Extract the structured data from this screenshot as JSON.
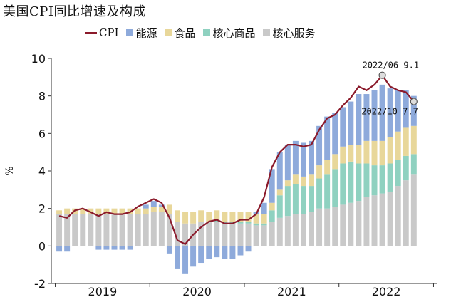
{
  "chart_data": {
    "type": "bar",
    "title": "美国CPI同比增速及构成",
    "ylabel": "%",
    "ylim": [
      -2,
      10
    ],
    "yticks": [
      -2,
      0,
      2,
      4,
      6,
      8,
      10
    ],
    "year_labels": [
      "2019",
      "2020",
      "2021",
      "2022"
    ],
    "colors": {
      "CPI": "#8b1a2b",
      "能源": "#8eaadb",
      "食品": "#e8d79a",
      "核心商品": "#8fd1c0",
      "核心服务": "#c9c9c9"
    },
    "legend": [
      {
        "key": "CPI",
        "label": "CPI",
        "kind": "line"
      },
      {
        "key": "能源",
        "label": "能源",
        "kind": "box"
      },
      {
        "key": "食品",
        "label": "食品",
        "kind": "box"
      },
      {
        "key": "核心商品",
        "label": "核心商品",
        "kind": "box"
      },
      {
        "key": "核心服务",
        "label": "核心服务",
        "kind": "box"
      }
    ],
    "x": [
      "2019-01",
      "2019-02",
      "2019-03",
      "2019-04",
      "2019-05",
      "2019-06",
      "2019-07",
      "2019-08",
      "2019-09",
      "2019-10",
      "2019-11",
      "2019-12",
      "2020-01",
      "2020-02",
      "2020-03",
      "2020-04",
      "2020-05",
      "2020-06",
      "2020-07",
      "2020-08",
      "2020-09",
      "2020-10",
      "2020-11",
      "2020-12",
      "2021-01",
      "2021-02",
      "2021-03",
      "2021-04",
      "2021-05",
      "2021-06",
      "2021-07",
      "2021-08",
      "2021-09",
      "2021-10",
      "2021-11",
      "2021-12",
      "2022-01",
      "2022-02",
      "2022-03",
      "2022-04",
      "2022-05",
      "2022-06",
      "2022-07",
      "2022-08",
      "2022-09",
      "2022-10"
    ],
    "series": [
      {
        "name": "核心服务",
        "values": [
          1.7,
          1.7,
          1.7,
          1.7,
          1.7,
          1.7,
          1.7,
          1.7,
          1.7,
          1.7,
          1.7,
          1.7,
          1.8,
          1.8,
          1.7,
          1.3,
          1.2,
          1.2,
          1.3,
          1.3,
          1.3,
          1.2,
          1.2,
          1.2,
          1.2,
          1.1,
          1.1,
          1.3,
          1.5,
          1.6,
          1.7,
          1.7,
          1.8,
          2.0,
          2.0,
          2.1,
          2.2,
          2.3,
          2.4,
          2.6,
          2.7,
          2.8,
          2.9,
          3.2,
          3.5,
          3.8
        ]
      },
      {
        "name": "核心商品",
        "values": [
          0.0,
          0.0,
          0.0,
          0.0,
          0.0,
          0.0,
          0.0,
          0.0,
          0.0,
          0.0,
          0.0,
          0.0,
          0.0,
          0.0,
          0.0,
          0.0,
          0.0,
          0.0,
          0.0,
          0.0,
          0.1,
          0.1,
          0.1,
          0.1,
          0.1,
          0.1,
          0.1,
          0.6,
          1.2,
          1.6,
          1.6,
          1.5,
          1.4,
          1.6,
          1.8,
          2.0,
          2.2,
          2.2,
          2.0,
          1.8,
          1.6,
          1.5,
          1.5,
          1.4,
          1.3,
          1.1
        ]
      },
      {
        "name": "食品",
        "values": [
          0.2,
          0.3,
          0.3,
          0.3,
          0.3,
          0.3,
          0.3,
          0.3,
          0.3,
          0.3,
          0.3,
          0.3,
          0.3,
          0.3,
          0.5,
          0.6,
          0.6,
          0.6,
          0.6,
          0.5,
          0.5,
          0.5,
          0.5,
          0.5,
          0.5,
          0.5,
          0.5,
          0.4,
          0.3,
          0.3,
          0.5,
          0.5,
          0.6,
          0.7,
          0.8,
          0.8,
          0.9,
          0.9,
          1.0,
          1.2,
          1.3,
          1.3,
          1.4,
          1.5,
          1.5,
          1.5
        ]
      },
      {
        "name": "能源",
        "values": [
          -0.3,
          -0.3,
          0.0,
          0.0,
          0.0,
          -0.2,
          -0.2,
          -0.2,
          -0.2,
          -0.2,
          0.0,
          0.2,
          0.3,
          0.1,
          -0.4,
          -1.2,
          -1.5,
          -1.1,
          -0.9,
          -0.7,
          -0.6,
          -0.7,
          -0.7,
          -0.5,
          -0.3,
          0.1,
          0.6,
          1.8,
          2.0,
          1.9,
          1.8,
          1.8,
          1.8,
          2.1,
          2.3,
          2.2,
          2.1,
          2.3,
          2.7,
          2.5,
          2.7,
          3.0,
          2.6,
          2.2,
          2.0,
          1.6
        ]
      },
      {
        "name": "CPI",
        "values": [
          1.6,
          1.5,
          1.9,
          2.0,
          1.8,
          1.6,
          1.8,
          1.7,
          1.7,
          1.8,
          2.1,
          2.3,
          2.5,
          2.3,
          1.5,
          0.3,
          0.1,
          0.6,
          1.0,
          1.3,
          1.4,
          1.2,
          1.2,
          1.4,
          1.4,
          1.7,
          2.6,
          4.2,
          5.0,
          5.4,
          5.4,
          5.3,
          5.4,
          6.2,
          6.8,
          7.0,
          7.5,
          7.9,
          8.5,
          8.3,
          8.6,
          9.1,
          8.5,
          8.3,
          8.2,
          7.7
        ]
      }
    ],
    "annotations": [
      {
        "text": "2022/06 9.1",
        "x": "2022-06",
        "y": 9.1
      },
      {
        "text": "2022/10 7.7",
        "x": "2022-10",
        "y": 7.7
      }
    ],
    "legend_position": "top",
    "grid": false
  }
}
